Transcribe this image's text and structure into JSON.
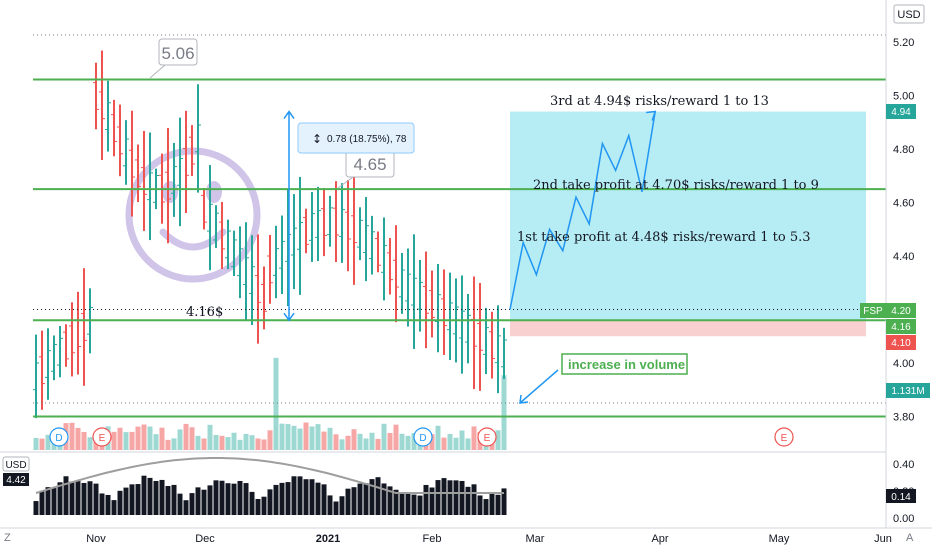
{
  "axis": {
    "currency": "USD",
    "price_ticks": [
      "5.20",
      "5.00",
      "4.80",
      "4.60",
      "4.40",
      "4.20",
      "4.00",
      "3.80"
    ],
    "oscillator_ticks": [
      "0.40",
      "0.20",
      "0.00"
    ],
    "time_labels": [
      "Nov",
      "Dec",
      "2021",
      "Feb",
      "Mar",
      "Apr",
      "May",
      "Jun"
    ],
    "corner_left": "Z",
    "corner_right": "A"
  },
  "price_tags": {
    "symbol": "FSP",
    "last": "4.20",
    "target": "4.94",
    "entry": "4.16",
    "stop": "4.10",
    "volume": "1.131M"
  },
  "oscillator": {
    "currency": "USD",
    "left_value": "4.42",
    "right_value": "0.14"
  },
  "annotations": {
    "high_1": "5.06",
    "high_2": "4.65",
    "support": "4.16$",
    "measure": "0.78 (18.75%), 78",
    "target_3": "3rd at 4.94$ risks/reward 1 to 13",
    "target_2": "2nd take profit at 4.70$ risks/reward 1 to 9",
    "target_1": "1st take profit at 4.48$ risks/reward 1 to 5.3",
    "volume_note": "increase in volume"
  },
  "events": {
    "dividend": "D",
    "earnings": "E"
  },
  "colors": {
    "up": "#26a69a",
    "down": "#ef5350",
    "line": "#4caf50",
    "arrow": "#2196f3",
    "profit_zone": "#b2ebf2",
    "loss_zone": "#f8d0d0",
    "smiley": "#d1c4e9"
  },
  "chart_data": {
    "type": "bar",
    "price_ticks": [
      5.2,
      5.0,
      4.8,
      4.6,
      4.4,
      4.2,
      4.0,
      3.8
    ],
    "horizontal_levels": [
      5.06,
      4.65,
      4.16,
      3.8
    ],
    "position": {
      "entry": 4.16,
      "stop": 4.1,
      "target": 4.94,
      "last": 4.2
    },
    "take_profits": [
      4.48,
      4.7,
      4.94
    ],
    "measure": {
      "low": 4.16,
      "high": 4.94,
      "change": 0.78,
      "percent": 18.75
    },
    "projection_path": [
      4.2,
      4.45,
      4.33,
      4.5,
      4.42,
      4.62,
      4.52,
      4.82,
      4.72,
      4.85,
      4.64,
      4.94
    ],
    "oscillator_last": 0.14,
    "volume_last": "1.131M"
  }
}
